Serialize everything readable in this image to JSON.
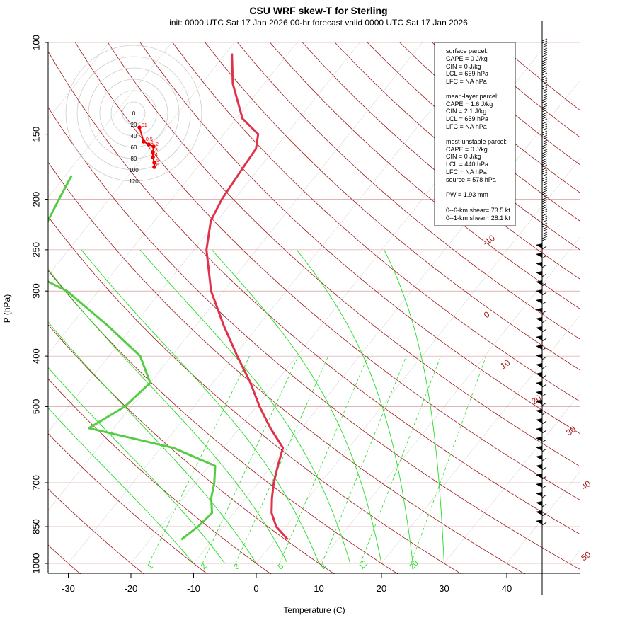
{
  "header": {
    "title": "CSU WRF skew-T for Sterling",
    "subtitle": "init: 0000 UTC Sat 17 Jan 2026     00-hr forecast valid 0000 UTC Sat 17 Jan 2026"
  },
  "colors": {
    "temperature": "#e0334b",
    "dewpoint": "#55cc44",
    "dry_adiabat": "#a01818",
    "moist_adiabat": "#22dd22",
    "mixing_ratio": "#22dd22",
    "isobar": "#cc8888",
    "isotherm": "#999999",
    "hodograph": "#ee0000"
  },
  "chart_data": {
    "type": "skew-t",
    "title": "CSU WRF skew-T for Sterling",
    "xlabel": "Temperature (C)",
    "ylabel": "P (hPa)",
    "x_ticks": [
      -30,
      -20,
      -10,
      0,
      10,
      20,
      30,
      40
    ],
    "pressure_ticks": [
      100,
      150,
      200,
      250,
      300,
      400,
      500,
      700,
      850,
      1000
    ],
    "isobars": [
      100,
      150,
      200,
      250,
      300,
      400,
      500,
      700,
      850,
      1000
    ],
    "dry_adiabat_labels": [
      "-10",
      "0",
      "10",
      "20",
      "30",
      "40",
      "50"
    ],
    "mixing_ratio_labels": [
      "1",
      "2",
      "3",
      "5",
      "8",
      "12",
      "20"
    ],
    "temperature_profile": [
      {
        "p": 900,
        "t": 2
      },
      {
        "p": 850,
        "t": -1.5
      },
      {
        "p": 800,
        "t": -4
      },
      {
        "p": 750,
        "t": -5.8
      },
      {
        "p": 700,
        "t": -7.5
      },
      {
        "p": 650,
        "t": -9
      },
      {
        "p": 600,
        "t": -10.5
      },
      {
        "p": 550,
        "t": -15
      },
      {
        "p": 500,
        "t": -19.5
      },
      {
        "p": 450,
        "t": -24
      },
      {
        "p": 400,
        "t": -29.5
      },
      {
        "p": 350,
        "t": -35.5
      },
      {
        "p": 300,
        "t": -42
      },
      {
        "p": 250,
        "t": -48
      },
      {
        "p": 220,
        "t": -51
      },
      {
        "p": 200,
        "t": -52
      },
      {
        "p": 180,
        "t": -52.5
      },
      {
        "p": 160,
        "t": -53
      },
      {
        "p": 150,
        "t": -54.5
      },
      {
        "p": 140,
        "t": -59
      },
      {
        "p": 120,
        "t": -65
      },
      {
        "p": 105,
        "t": -69
      }
    ],
    "dewpoint_profile": [
      {
        "p": 900,
        "t": -15
      },
      {
        "p": 850,
        "t": -14
      },
      {
        "p": 800,
        "t": -13.5
      },
      {
        "p": 750,
        "t": -15.5
      },
      {
        "p": 700,
        "t": -17
      },
      {
        "p": 650,
        "t": -19
      },
      {
        "p": 600,
        "t": -28
      },
      {
        "p": 550,
        "t": -44
      },
      {
        "p": 500,
        "t": -41
      },
      {
        "p": 450,
        "t": -40
      },
      {
        "p": 400,
        "t": -45
      },
      {
        "p": 350,
        "t": -54
      },
      {
        "p": 300,
        "t": -65
      },
      {
        "p": 280,
        "t": -72
      },
      {
        "p": 250,
        "t": -75
      },
      {
        "p": 220,
        "t": -77
      },
      {
        "p": 200,
        "t": -78
      },
      {
        "p": 180,
        "t": -79
      }
    ]
  },
  "hodograph": {
    "ring_labels": [
      "0",
      "20",
      "40",
      "60",
      "80",
      "100",
      "120"
    ],
    "point_labels": [
      "01",
      "0.5",
      "1",
      "2",
      "3",
      "4",
      "5",
      "6"
    ]
  },
  "info_box": {
    "surface_header": "surface parcel:",
    "surface_cape": "CAPE = 0 J/kg",
    "surface_cin": "CIN = 0 J/kg",
    "surface_lcl": "LCL = 669 hPa",
    "surface_lfc": "LFC = NA hPa",
    "mean_header": "mean-layer parcel:",
    "mean_cape": "CAPE = 1.6 J/kg",
    "mean_cin": "CIN = 2.1 J/kg",
    "mean_lcl": "LCL = 659 hPa",
    "mean_lfc": "LFC = NA hPa",
    "mu_header": "most-unstable parcel:",
    "mu_cape": "CAPE = 0 J/kg",
    "mu_cin": "CIN = 0 J/kg",
    "mu_lcl": "LCL = 440 hPa",
    "mu_lfc": "LFC = NA hPa",
    "mu_source": "source = 578 hPa",
    "pw": "PW =  1.93 mm",
    "shear6": "0--6-km shear= 73.5 kt",
    "shear1": "0--1-km shear= 28.1 kt"
  }
}
